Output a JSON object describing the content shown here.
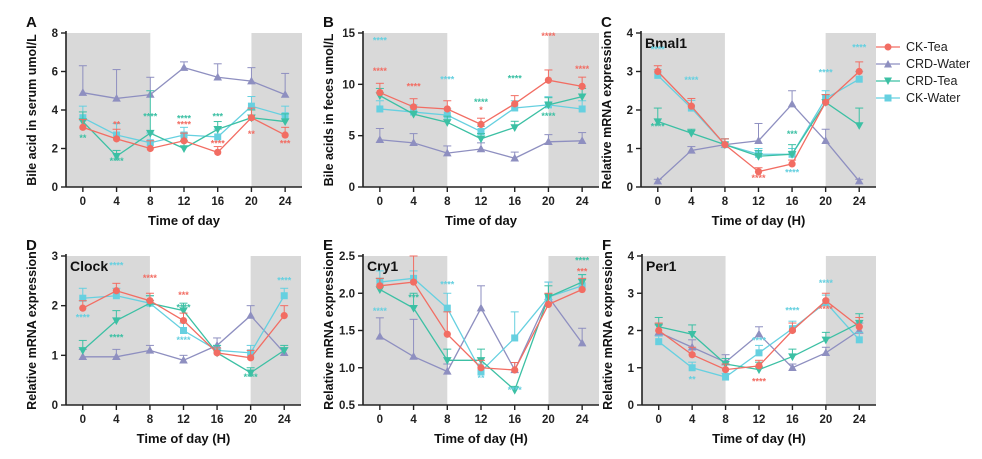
{
  "series_styles": [
    {
      "name": "CK-Tea",
      "color": "#f26d63",
      "marker": "circle"
    },
    {
      "name": "CRD-Water",
      "color": "#8e8fc0",
      "marker": "triangle-up"
    },
    {
      "name": "CRD-Tea",
      "color": "#3cc0a4",
      "marker": "triangle-down"
    },
    {
      "name": "CK-Water",
      "color": "#66d0e0",
      "marker": "square"
    }
  ],
  "chart_data": [
    {
      "panel": "A",
      "type": "line",
      "title": "",
      "xlabel": "Time of day",
      "ylabel": "Bile acid in serum umol/L",
      "x": [
        0,
        4,
        8,
        12,
        16,
        20,
        24
      ],
      "xlim": [
        -2,
        26
      ],
      "ylim": [
        0,
        8
      ],
      "yticks": [
        0,
        2,
        4,
        6,
        8
      ],
      "shaded": [
        [
          -2,
          8
        ],
        [
          20,
          26
        ]
      ],
      "series": [
        {
          "name": "CK-Tea",
          "values": [
            3.1,
            2.5,
            2.0,
            2.4,
            1.8,
            3.6,
            2.7
          ],
          "err": [
            0.4,
            0.5,
            0.4,
            0.4,
            0.3,
            0.5,
            0.4
          ]
        },
        {
          "name": "CRD-Water",
          "values": [
            4.9,
            4.6,
            4.8,
            6.2,
            5.7,
            5.5,
            4.8
          ],
          "err": [
            1.4,
            1.5,
            0.9,
            0.3,
            0.7,
            0.7,
            1.1
          ]
        },
        {
          "name": "CRD-Tea",
          "values": [
            3.4,
            1.6,
            2.8,
            2.0,
            3.0,
            3.6,
            3.4
          ],
          "err": [
            0.5,
            0.3,
            2.2,
            0.4,
            0.4,
            0.4,
            0.4
          ]
        },
        {
          "name": "CK-Water",
          "values": [
            3.6,
            2.7,
            2.3,
            2.7,
            2.6,
            4.2,
            3.7
          ],
          "err": [
            0.6,
            0.6,
            0.5,
            0.4,
            0.4,
            0.5,
            0.5
          ]
        }
      ],
      "annotations": [
        "**",
        "****",
        "**",
        "****",
        "****",
        "****",
        "***",
        "****",
        "**",
        "***"
      ]
    },
    {
      "panel": "B",
      "type": "line",
      "title": "",
      "xlabel": "Time of day",
      "ylabel": "Bile acids in feces umol/L",
      "x": [
        0,
        4,
        8,
        12,
        16,
        20,
        24
      ],
      "xlim": [
        -2,
        26
      ],
      "ylim": [
        0,
        15
      ],
      "yticks": [
        0,
        5,
        10,
        15
      ],
      "shaded": [
        [
          -2,
          8
        ],
        [
          20,
          26
        ]
      ],
      "series": [
        {
          "name": "CK-Tea",
          "values": [
            9.2,
            7.8,
            7.6,
            6.1,
            8.1,
            10.4,
            9.8
          ],
          "err": [
            0.9,
            0.8,
            0.8,
            0.6,
            0.8,
            1.0,
            0.9
          ]
        },
        {
          "name": "CRD-Water",
          "values": [
            4.6,
            4.3,
            3.3,
            3.7,
            2.8,
            4.4,
            4.5
          ],
          "err": [
            1.1,
            0.9,
            0.7,
            0.6,
            0.6,
            0.7,
            0.8
          ]
        },
        {
          "name": "CRD-Tea",
          "values": [
            8.9,
            7.1,
            6.3,
            4.7,
            5.8,
            8.0,
            8.8
          ],
          "err": [
            0.7,
            0.7,
            0.6,
            0.5,
            0.6,
            0.7,
            0.8
          ]
        },
        {
          "name": "CK-Water",
          "values": [
            7.6,
            7.3,
            7.0,
            5.4,
            7.7,
            8.0,
            7.6
          ],
          "err": [
            0.8,
            0.7,
            0.6,
            0.5,
            0.7,
            0.8,
            0.8
          ]
        }
      ],
      "annotations": [
        "****",
        "****",
        "****",
        "****",
        "****",
        "*",
        "****",
        "****",
        "****",
        "****"
      ]
    },
    {
      "panel": "C",
      "type": "line",
      "title": "Bmal1",
      "xlabel": "Time of day (H)",
      "ylabel": "Relative mRNA expression",
      "x": [
        0,
        4,
        8,
        12,
        16,
        20,
        24
      ],
      "xlim": [
        -2,
        26
      ],
      "ylim": [
        0,
        4
      ],
      "yticks": [
        0,
        1,
        2,
        3,
        4
      ],
      "shaded": [
        [
          -2,
          8
        ],
        [
          20,
          26
        ]
      ],
      "series": [
        {
          "name": "CK-Tea",
          "values": [
            3.0,
            2.1,
            1.1,
            0.4,
            0.6,
            2.2,
            3.0
          ],
          "err": [
            0.15,
            0.2,
            0.15,
            0.1,
            0.1,
            0.2,
            0.25
          ]
        },
        {
          "name": "CRD-Water",
          "values": [
            0.15,
            0.95,
            1.1,
            1.2,
            2.15,
            1.2,
            0.15
          ],
          "err": [
            0.05,
            0.1,
            0.15,
            0.45,
            0.35,
            0.3,
            0.05
          ]
        },
        {
          "name": "CRD-Tea",
          "values": [
            1.7,
            1.4,
            1.1,
            0.8,
            0.85,
            2.2,
            1.6
          ],
          "err": [
            0.35,
            0.1,
            0.15,
            0.15,
            0.25,
            0.2,
            0.45
          ]
        },
        {
          "name": "CK-Water",
          "values": [
            2.9,
            2.05,
            1.1,
            0.85,
            0.85,
            2.3,
            2.8
          ],
          "err": [
            0.15,
            0.2,
            0.15,
            0.15,
            0.15,
            0.2,
            0.2
          ]
        }
      ],
      "annotations": [
        "****",
        "****",
        "****",
        "****",
        "***",
        "****",
        "****",
        "****"
      ]
    },
    {
      "panel": "D",
      "type": "line",
      "title": "Clock",
      "xlabel": "Time of day (H)",
      "ylabel": "Relative mRNA expression",
      "x": [
        0,
        4,
        8,
        12,
        16,
        20,
        24
      ],
      "xlim": [
        -2,
        26
      ],
      "ylim": [
        0,
        3
      ],
      "yticks": [
        0,
        1,
        2,
        3
      ],
      "shaded": [
        [
          -2,
          8
        ],
        [
          20,
          26
        ]
      ],
      "series": [
        {
          "name": "CK-Tea",
          "values": [
            1.95,
            2.3,
            2.1,
            1.7,
            1.05,
            0.95,
            1.8
          ],
          "err": [
            0.15,
            0.15,
            0.15,
            0.15,
            0.1,
            0.15,
            0.2
          ]
        },
        {
          "name": "CRD-Water",
          "values": [
            0.97,
            0.97,
            1.1,
            0.9,
            1.2,
            1.8,
            1.05
          ],
          "err": [
            0.15,
            0.15,
            0.1,
            0.1,
            0.15,
            0.2,
            0.1
          ]
        },
        {
          "name": "CRD-Tea",
          "values": [
            1.1,
            1.7,
            2.05,
            1.9,
            1.05,
            0.65,
            1.1
          ],
          "err": [
            0.2,
            0.2,
            0.15,
            0.15,
            0.15,
            0.1,
            0.1
          ]
        },
        {
          "name": "CK-Water",
          "values": [
            2.15,
            2.2,
            2.05,
            1.5,
            1.1,
            1.05,
            2.2
          ],
          "err": [
            0.2,
            0.15,
            0.15,
            0.15,
            0.1,
            0.15,
            0.15
          ]
        }
      ],
      "annotations": [
        "****",
        "****",
        "****",
        "****",
        "***",
        "****",
        "****",
        "****",
        "****"
      ]
    },
    {
      "panel": "E",
      "type": "line",
      "title": "Cry1",
      "xlabel": "Time of day (H)",
      "ylabel": "Relative mRNA expression",
      "x": [
        0,
        4,
        8,
        12,
        16,
        20,
        24
      ],
      "xlim": [
        -2,
        26
      ],
      "ylim": [
        0.5,
        2.5
      ],
      "yticks": [
        0.5,
        1.0,
        1.5,
        2.0,
        2.5
      ],
      "shaded": [
        [
          -2,
          8
        ],
        [
          20,
          26
        ]
      ],
      "series": [
        {
          "name": "CK-Tea",
          "values": [
            2.1,
            2.15,
            1.45,
            1.0,
            0.97,
            1.85,
            2.05
          ],
          "err": [
            0.1,
            0.35,
            0.3,
            0.1,
            0.1,
            0.15,
            0.15
          ]
        },
        {
          "name": "CRD-Water",
          "values": [
            1.42,
            1.15,
            0.95,
            1.8,
            0.97,
            1.95,
            1.33
          ],
          "err": [
            0.25,
            0.5,
            0.1,
            0.3,
            0.1,
            0.2,
            0.2
          ]
        },
        {
          "name": "CRD-Tea",
          "values": [
            2.05,
            1.8,
            1.1,
            1.1,
            0.7,
            1.95,
            2.15
          ],
          "err": [
            0.15,
            0.2,
            0.15,
            0.15,
            0.05,
            0.15,
            0.1
          ]
        },
        {
          "name": "CK-Water",
          "values": [
            2.15,
            2.2,
            1.8,
            0.95,
            1.4,
            1.95,
            2.1
          ],
          "err": [
            0.15,
            0.1,
            0.2,
            0.1,
            0.35,
            0.2,
            0.15
          ]
        }
      ],
      "annotations": [
        "****",
        "***",
        "****",
        "**",
        "****",
        "****",
        "***"
      ]
    },
    {
      "panel": "F",
      "type": "line",
      "title": "Per1",
      "xlabel": "Time of day (H)",
      "ylabel": "Relative mRNA expression",
      "x": [
        0,
        4,
        8,
        12,
        16,
        20,
        24
      ],
      "xlim": [
        -2,
        26
      ],
      "ylim": [
        0,
        4
      ],
      "yticks": [
        0,
        1,
        2,
        3,
        4
      ],
      "shaded": [
        [
          -2,
          8
        ],
        [
          20,
          26
        ]
      ],
      "series": [
        {
          "name": "CK-Tea",
          "values": [
            2.0,
            1.35,
            0.95,
            1.05,
            2.0,
            2.8,
            2.1
          ],
          "err": [
            0.2,
            0.2,
            0.15,
            0.15,
            0.2,
            0.2,
            0.25
          ]
        },
        {
          "name": "CRD-Water",
          "values": [
            1.95,
            1.55,
            1.15,
            1.9,
            1.0,
            1.4,
            2.0
          ],
          "err": [
            0.2,
            0.2,
            0.2,
            0.2,
            0.1,
            0.15,
            0.2
          ]
        },
        {
          "name": "CRD-Tea",
          "values": [
            2.1,
            1.9,
            1.1,
            0.95,
            1.3,
            1.75,
            2.2
          ],
          "err": [
            0.25,
            0.25,
            0.15,
            0.2,
            0.2,
            0.2,
            0.25
          ]
        },
        {
          "name": "CK-Water",
          "values": [
            1.7,
            1.0,
            0.75,
            1.4,
            2.05,
            2.75,
            1.75
          ],
          "err": [
            0.15,
            0.15,
            0.1,
            0.2,
            0.2,
            0.2,
            0.2
          ]
        }
      ],
      "annotations": [
        "**",
        "****",
        "****",
        "****",
        "****",
        "****"
      ]
    }
  ]
}
